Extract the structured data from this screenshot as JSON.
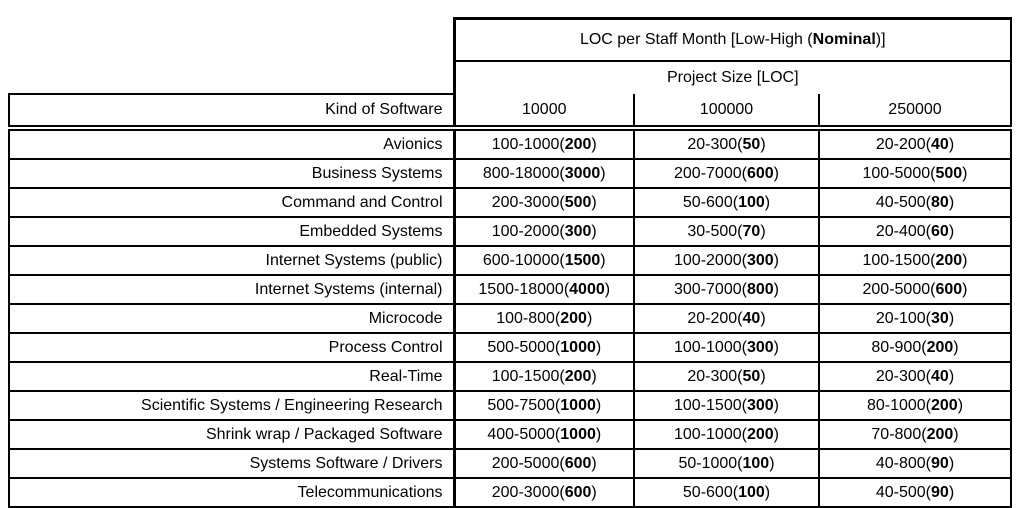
{
  "table": {
    "title": {
      "prefix": "LOC per Staff Month [Low-High (",
      "bold": "Nominal",
      "suffix": ")]"
    },
    "subtitle": "Project Size [LOC]",
    "kind_header": "Kind of Software",
    "columns": [
      "10000",
      "100000",
      "250000"
    ],
    "rows": [
      {
        "kind": "Avionics",
        "values": [
          "100-1000(200)",
          "20-300(50)",
          "20-200(40)"
        ]
      },
      {
        "kind": "Business Systems",
        "values": [
          "800-18000(3000)",
          "200-7000(600)",
          "100-5000(500)"
        ]
      },
      {
        "kind": "Command and Control",
        "values": [
          "200-3000(500)",
          "50-600(100)",
          "40-500(80)"
        ]
      },
      {
        "kind": "Embedded Systems",
        "values": [
          "100-2000(300)",
          "30-500(70)",
          "20-400(60)"
        ]
      },
      {
        "kind": "Internet Systems (public)",
        "values": [
          "600-10000(1500)",
          "100-2000(300)",
          "100-1500(200)"
        ]
      },
      {
        "kind": "Internet Systems (internal)",
        "values": [
          "1500-18000(4000)",
          "300-7000(800)",
          "200-5000(600)"
        ]
      },
      {
        "kind": "Microcode",
        "values": [
          "100-800(200)",
          "20-200(40)",
          "20-100(30)"
        ]
      },
      {
        "kind": "Process Control",
        "values": [
          "500-5000(1000)",
          "100-1000(300)",
          "80-900(200)"
        ]
      },
      {
        "kind": "Real-Time",
        "values": [
          "100-1500(200)",
          "20-300(50)",
          "20-300(40)"
        ]
      },
      {
        "kind": "Scientific Systems / Engineering Research",
        "values": [
          "500-7500(1000)",
          "100-1500(300)",
          "80-1000(200)"
        ]
      },
      {
        "kind": "Shrink wrap / Packaged Software",
        "values": [
          "400-5000(1000)",
          "100-1000(200)",
          "70-800(200)"
        ]
      },
      {
        "kind": "Systems Software / Drivers",
        "values": [
          "200-5000(600)",
          "50-1000(100)",
          "40-800(90)"
        ]
      },
      {
        "kind": "Telecommunications",
        "values": [
          "200-3000(600)",
          "50-600(100)",
          "40-500(90)"
        ]
      }
    ]
  }
}
